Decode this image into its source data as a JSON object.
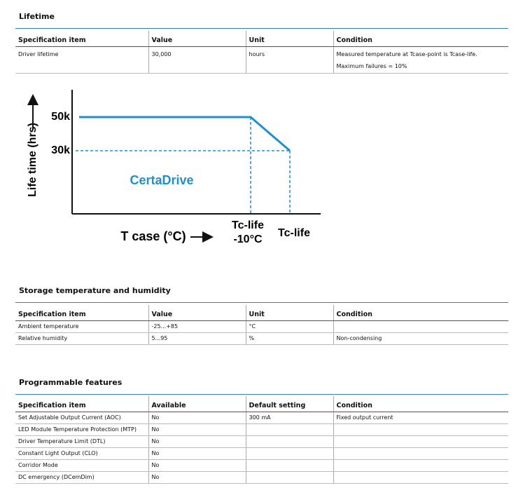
{
  "sections": [
    {
      "title": "Lifetime",
      "table": {
        "header": [
          "Specification item",
          "Value",
          "Unit",
          "Condition"
        ],
        "rows": [
          [
            "Driver lifetime",
            "30,000",
            "hours",
            "Measured temperature at Tcase-point is Tcase-life. Maximum failures = 10%"
          ]
        ]
      }
    },
    {
      "title": "Storage temperature and humidity",
      "table": {
        "header": [
          "Specification item",
          "Value",
          "Unit",
          "Condition"
        ],
        "rows": [
          [
            "Ambient temperature",
            "-25...+85",
            "°C",
            ""
          ],
          [
            "Relative humidity",
            "5...95",
            "%",
            "Non-condensing"
          ]
        ]
      }
    },
    {
      "title": "Programmable features",
      "table": {
        "header": [
          "Specification item",
          "Available",
          "Default setting",
          "Condition"
        ],
        "rows": [
          [
            "Set Adjustable Output Current (AOC)",
            "No",
            "300 mA",
            "Fixed output current"
          ],
          [
            "LED Module Temperature Protection (MTP)",
            "No",
            "",
            ""
          ],
          [
            "Driver Temperature Limit (DTL)",
            "No",
            "",
            ""
          ],
          [
            "Constant Light Output (CLO)",
            "No",
            "",
            ""
          ],
          [
            "Corridor Mode",
            "No",
            "",
            ""
          ],
          [
            "DC emergency (DCemDim)",
            "No",
            "",
            ""
          ]
        ]
      }
    }
  ],
  "diagram": {
    "y_axis_label": "Life time (hrs)",
    "y_labels": [
      "50k",
      "30k"
    ],
    "brand": "CertaDrive",
    "x_axis_label": "T case (°C)",
    "x_labels": [
      [
        "Tc-life",
        "-10°C"
      ],
      [
        "Tc-life"
      ]
    ]
  }
}
